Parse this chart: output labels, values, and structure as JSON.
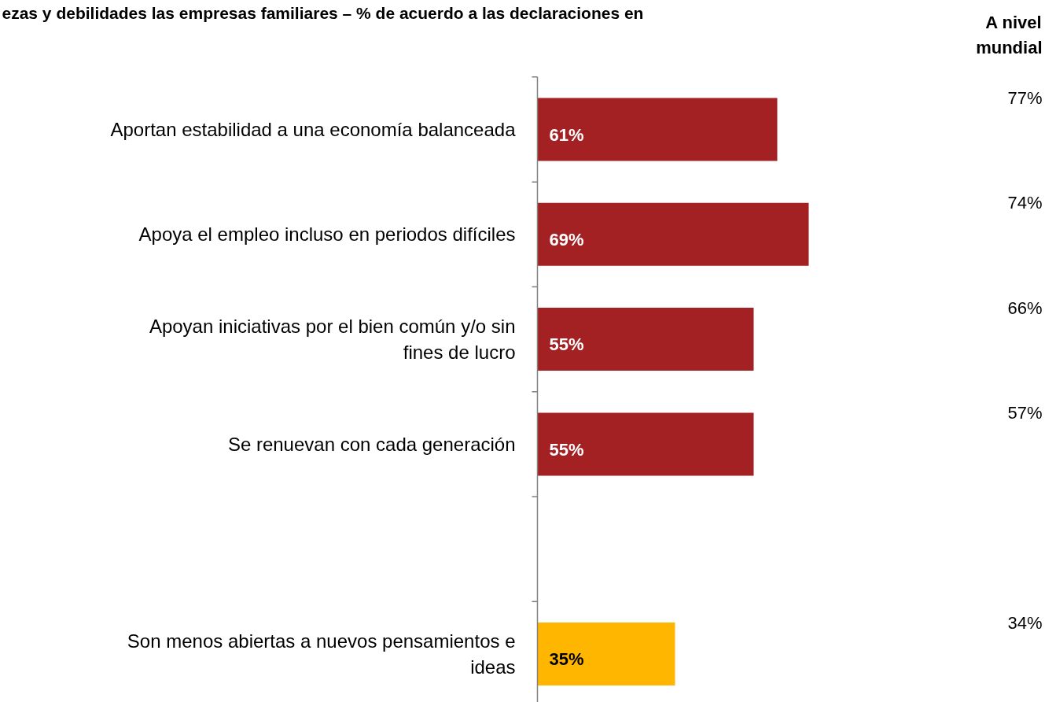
{
  "chart_data": {
    "type": "bar",
    "orientation": "horizontal",
    "title": "ezas y debilidades las empresas familiares – % de acuerdo a las declaraciones en",
    "categories": [
      "Aportan estabilidad a una economía balanceada",
      "Apoya el empleo incluso en periodos difíciles",
      "Apoyan iniciativas por el bien común y/o sin fines de lucro",
      "Se renuevan con cada generación",
      null,
      "Son menos abiertas a nuevos pensamientos e ideas"
    ],
    "values": [
      61,
      69,
      55,
      55,
      null,
      35
    ],
    "colors": [
      "#a32023",
      "#a32023",
      "#a32023",
      "#a32023",
      "#a32023",
      "#ffb600"
    ],
    "value_labels": [
      "61%",
      "69%",
      "55%",
      "55%",
      null,
      "35%"
    ],
    "annotations": [
      "A nivel mundial",
      "77%",
      "74%",
      "66%",
      "57%",
      null,
      "34%"
    ],
    "grid": false
  }
}
